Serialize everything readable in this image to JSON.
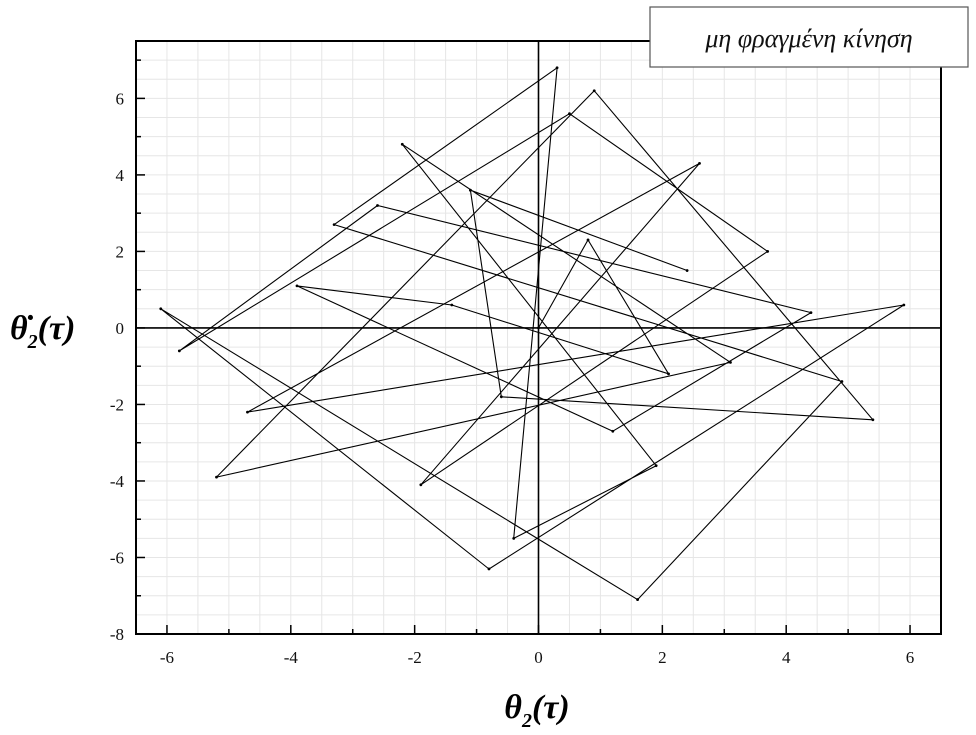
{
  "chart_data": {
    "type": "line",
    "title": "",
    "legend": {
      "entry": "μη φραγμένη κίνηση",
      "placement": "top-right"
    },
    "xlabel": {
      "symbol": "θ",
      "subscript": "2",
      "suffix": "(τ)"
    },
    "ylabel": {
      "symbol": "θ̇",
      "subscript": "2",
      "suffix": "(τ)"
    },
    "xlim": [
      -6.5,
      6.5
    ],
    "ylim": [
      -8,
      7.5
    ],
    "x_ticks": [
      -6,
      -4,
      -2,
      0,
      2,
      4,
      6
    ],
    "x_tick_labels": [
      "-6",
      "-4",
      "-2",
      "0",
      "2",
      "4",
      "6"
    ],
    "y_ticks": [
      -8,
      -6,
      -4,
      -2,
      0,
      2,
      4,
      6
    ],
    "y_tick_labels": [
      "-8",
      "-6",
      "-4",
      "-2",
      "0",
      "2",
      "4",
      "6"
    ],
    "grid": true,
    "zero_lines": true,
    "series": [
      {
        "name": "μη φραγμένη κίνηση",
        "color": "#000000",
        "description_of_shape": "chaotic phase-space trajectory, dense core near origin",
        "x": [
          0.0,
          0.8,
          2.1,
          -1.4,
          -3.9,
          1.2,
          4.4,
          -2.6,
          -5.8,
          0.5,
          3.7,
          -1.9,
          2.6,
          -4.7,
          5.9,
          -0.8,
          -6.1,
          1.6,
          4.9,
          -3.3,
          0.3,
          -0.4,
          1.9,
          -2.2,
          3.1,
          -5.2,
          0.9,
          5.4,
          -0.6,
          -1.1,
          2.4
        ],
        "y": [
          0.0,
          2.3,
          -1.2,
          0.6,
          1.1,
          -2.7,
          0.4,
          3.2,
          -0.6,
          5.6,
          2.0,
          -4.1,
          4.3,
          -2.2,
          0.6,
          -6.3,
          0.5,
          -7.1,
          -1.4,
          2.7,
          6.8,
          -5.5,
          -3.6,
          4.8,
          -0.9,
          -3.9,
          6.2,
          -2.4,
          -1.8,
          3.6,
          1.5
        ]
      }
    ]
  }
}
